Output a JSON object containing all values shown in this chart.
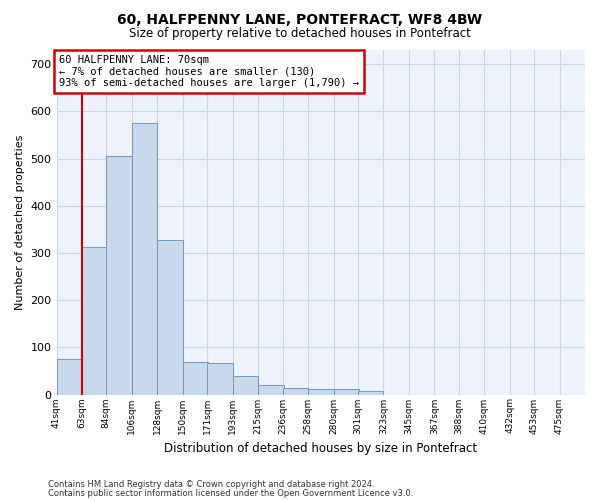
{
  "title": "60, HALFPENNY LANE, PONTEFRACT, WF8 4BW",
  "subtitle": "Size of property relative to detached houses in Pontefract",
  "xlabel": "Distribution of detached houses by size in Pontefract",
  "ylabel": "Number of detached properties",
  "footnote1": "Contains HM Land Registry data © Crown copyright and database right 2024.",
  "footnote2": "Contains public sector information licensed under the Open Government Licence v3.0.",
  "bar_color": "#c9d9ec",
  "bar_edge_color": "#7099c0",
  "grid_color": "#c8d4e8",
  "background_color": "#eef2fa",
  "annotation_box_color": "#cc0000",
  "annotation_line1": "60 HALFPENNY LANE: 70sqm",
  "annotation_line2": "← 7% of detached houses are smaller (130)",
  "annotation_line3": "93% of semi-detached houses are larger (1,790) →",
  "property_line_color": "#cc0000",
  "categories": [
    "41sqm",
    "63sqm",
    "84sqm",
    "106sqm",
    "128sqm",
    "150sqm",
    "171sqm",
    "193sqm",
    "215sqm",
    "236sqm",
    "258sqm",
    "280sqm",
    "301sqm",
    "323sqm",
    "345sqm",
    "367sqm",
    "388sqm",
    "410sqm",
    "432sqm",
    "453sqm",
    "475sqm"
  ],
  "bin_edges": [
    41,
    63,
    84,
    106,
    128,
    150,
    171,
    193,
    215,
    236,
    258,
    280,
    301,
    323,
    345,
    367,
    388,
    410,
    432,
    453,
    475
  ],
  "bin_width": 22,
  "values": [
    75,
    312,
    505,
    575,
    328,
    68,
    67,
    40,
    20,
    13,
    11,
    11,
    8,
    0,
    0,
    0,
    0,
    0,
    0,
    0,
    0
  ],
  "property_line_x": 63,
  "ylim": [
    0,
    730
  ],
  "yticks": [
    0,
    100,
    200,
    300,
    400,
    500,
    600,
    700
  ]
}
